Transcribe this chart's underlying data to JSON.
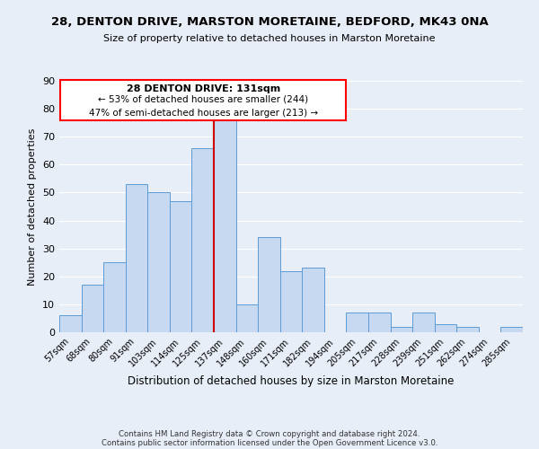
{
  "title1": "28, DENTON DRIVE, MARSTON MORETAINE, BEDFORD, MK43 0NA",
  "title2": "Size of property relative to detached houses in Marston Moretaine",
  "xlabel": "Distribution of detached houses by size in Marston Moretaine",
  "ylabel": "Number of detached properties",
  "footnote1": "Contains HM Land Registry data © Crown copyright and database right 2024.",
  "footnote2": "Contains public sector information licensed under the Open Government Licence v3.0.",
  "categories": [
    "57sqm",
    "68sqm",
    "80sqm",
    "91sqm",
    "103sqm",
    "114sqm",
    "125sqm",
    "137sqm",
    "148sqm",
    "160sqm",
    "171sqm",
    "182sqm",
    "194sqm",
    "205sqm",
    "217sqm",
    "228sqm",
    "239sqm",
    "251sqm",
    "262sqm",
    "274sqm",
    "285sqm"
  ],
  "values": [
    6,
    17,
    25,
    53,
    50,
    47,
    66,
    76,
    10,
    34,
    22,
    23,
    0,
    7,
    7,
    2,
    7,
    3,
    2,
    0,
    2
  ],
  "bar_color": "#c7d9f0",
  "bar_edge_color": "#5b9bd5",
  "vline_color": "#cc0000",
  "annotation_line_label": "28 DENTON DRIVE: 131sqm",
  "annotation_text2": "← 53% of detached houses are smaller (244)",
  "annotation_text3": "47% of semi-detached houses are larger (213) →",
  "ylim": [
    0,
    90
  ],
  "yticks": [
    0,
    10,
    20,
    30,
    40,
    50,
    60,
    70,
    80,
    90
  ],
  "bg_color": "#e8eef8",
  "grid_color": "#ffffff"
}
